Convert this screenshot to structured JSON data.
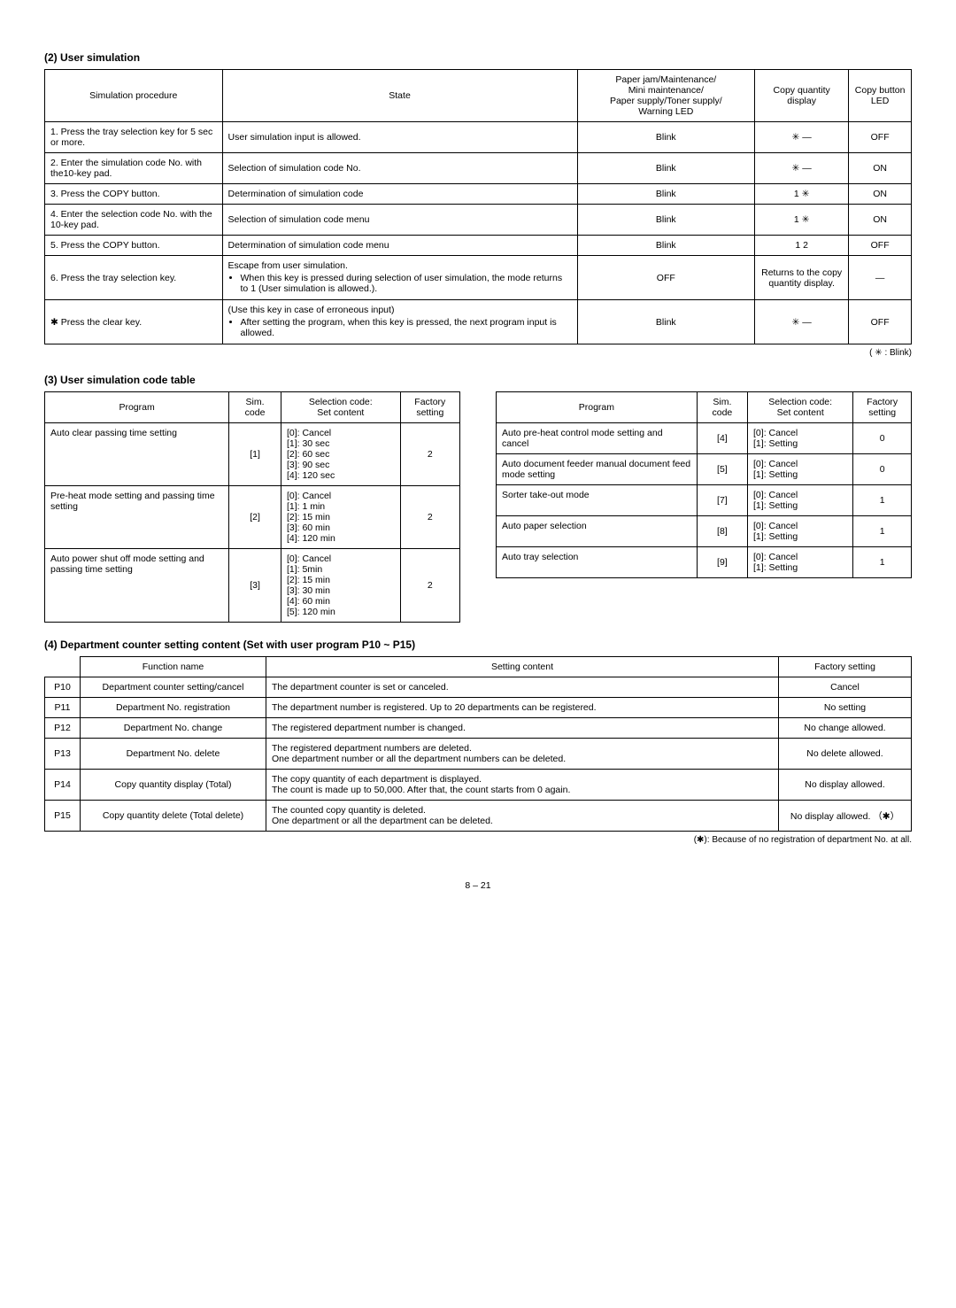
{
  "section2": {
    "title": "(2) User simulation",
    "headers": {
      "h1": "Simulation procedure",
      "h2": "State",
      "h3": "Paper jam/Maintenance/\nMini maintenance/\nPaper supply/Toner supply/\nWarning LED",
      "h4": "Copy quantity display",
      "h5": "Copy button LED"
    },
    "rows": [
      {
        "c1": "1. Press the tray selection key for 5 sec or more.",
        "c2": "User simulation input is allowed.",
        "c3": "Blink",
        "c4": "✳ —",
        "c5": "OFF"
      },
      {
        "c1": "2. Enter the simulation code No. with the10-key pad.",
        "c2": "Selection of simulation code No.",
        "c3": "Blink",
        "c4": "✳ —",
        "c5": "ON"
      },
      {
        "c1": "3. Press the COPY button.",
        "c2": "Determination of simulation code",
        "c3": "Blink",
        "c4": "1  ✳",
        "c5": "ON"
      },
      {
        "c1": "4. Enter the selection code No. with the 10-key pad.",
        "c2": "Selection of simulation code menu",
        "c3": "Blink",
        "c4": "1  ✳",
        "c5": "ON"
      },
      {
        "c1": "5. Press the COPY button.",
        "c2": "Determination of simulation code menu",
        "c3": "Blink",
        "c4": "1    2",
        "c5": "OFF"
      },
      {
        "c1": "6. Press the tray selection key.",
        "c2": "Escape from user simulation.",
        "c2b": "When this key is pressed during selection of user simulation, the mode returns to 1 (User simulation is allowed.).",
        "c3": "OFF",
        "c4": "Returns to the copy quantity display.",
        "c5": "—"
      },
      {
        "c1": "✱ Press the clear key.",
        "c2": "(Use this key in case of erroneous input)",
        "c2b": "After setting the program, when this key is pressed, the next program input is allowed.",
        "c3": "Blink",
        "c4": "✳ —",
        "c5": "OFF"
      }
    ],
    "legend": "(  ✳  : Blink)"
  },
  "section3": {
    "title": "(3) User simulation code table",
    "headers": {
      "h1": "Program",
      "h2": "Sim. code",
      "h3": "Selection code:\nSet content",
      "h4": "Factory setting"
    },
    "left": [
      {
        "c1": "Auto clear passing time setting",
        "c2": "[1]",
        "c3": [
          "[0]: Cancel",
          "[1]: 30 sec",
          "[2]: 60 sec",
          "[3]: 90 sec",
          "[4]: 120 sec"
        ],
        "c4": "2"
      },
      {
        "c1": "Pre-heat mode setting and passing time setting",
        "c2": "[2]",
        "c3": [
          "[0]: Cancel",
          "[1]: 1 min",
          "[2]: 15 min",
          "[3]: 60 min",
          "[4]: 120 min"
        ],
        "c4": "2"
      },
      {
        "c1": "Auto power shut off mode setting and passing time setting",
        "c2": "[3]",
        "c3": [
          "[0]: Cancel",
          "[1]: 5min",
          "[2]: 15 min",
          "[3]: 30 min",
          "[4]: 60 min",
          "[5]: 120 min"
        ],
        "c4": "2"
      }
    ],
    "right": [
      {
        "c1": "Auto pre-heat control mode setting and cancel",
        "c2": "[4]",
        "c3": [
          "[0]: Cancel",
          "[1]: Setting"
        ],
        "c4": "0"
      },
      {
        "c1": "Auto document feeder manual document feed mode setting",
        "c2": "[5]",
        "c3": [
          "[0]: Cancel",
          "[1]: Setting"
        ],
        "c4": "0"
      },
      {
        "c1": "Sorter take-out mode",
        "c2": "[7]",
        "c3": [
          "[0]: Cancel",
          "[1]: Setting"
        ],
        "c4": "1"
      },
      {
        "c1": "Auto paper selection",
        "c2": "[8]",
        "c3": [
          "[0]: Cancel",
          "[1]: Setting"
        ],
        "c4": "1"
      },
      {
        "c1": "Auto tray selection",
        "c2": "[9]",
        "c3": [
          "[0]: Cancel",
          "[1]: Setting"
        ],
        "c4": "1"
      }
    ]
  },
  "section4": {
    "title": "(4) Department counter setting content (Set with user program P10 ~ P15)",
    "headers": {
      "h0": "",
      "h1": "Function name",
      "h2": "Setting content",
      "h3": "Factory setting"
    },
    "rows": [
      {
        "c0": "P10",
        "c1": "Department counter setting/cancel",
        "c2": "The department counter is set or canceled.",
        "c3": "Cancel"
      },
      {
        "c0": "P11",
        "c1": "Department No. registration",
        "c2": "The department number is registered. Up to 20 departments can be registered.",
        "c3": "No setting"
      },
      {
        "c0": "P12",
        "c1": "Department No. change",
        "c2": "The registered department number is changed.",
        "c3": "No change allowed."
      },
      {
        "c0": "P13",
        "c1": "Department No. delete",
        "c2": "The registered department numbers are deleted.\nOne department number or all the department numbers can be deleted.",
        "c3": "No delete allowed."
      },
      {
        "c0": "P14",
        "c1": "Copy quantity display (Total)",
        "c2": "The copy quantity of each department is displayed.\nThe count is made up to 50,000. After that, the count starts from 0 again.",
        "c3": "No display allowed."
      },
      {
        "c0": "P15",
        "c1": "Copy quantity delete (Total delete)",
        "c2": "The counted copy quantity is deleted.\nOne department or all the department can be deleted.",
        "c3": "No display allowed. （✱）"
      }
    ],
    "footnote": "(✱): Because of no registration of department No. at all."
  },
  "pagenum": "8 – 21"
}
